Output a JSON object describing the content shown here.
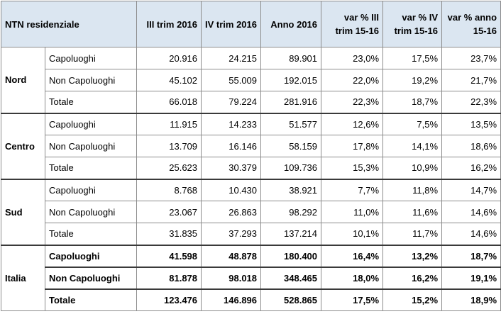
{
  "table": {
    "headers": {
      "title": "NTN residenziale",
      "c1": "III trim 2016",
      "c2": "IV trim 2016",
      "c3": "Anno 2016",
      "c4": "var % III trim 15-16",
      "c5": "var % IV trim 15-16",
      "c6": "var % anno 15-16"
    },
    "groups": [
      {
        "name": "Nord",
        "rows": [
          {
            "label": "Capoluoghi",
            "v": [
              "20.916",
              "24.215",
              "89.901",
              "23,0%",
              "17,5%",
              "23,7%"
            ]
          },
          {
            "label": "Non Capoluoghi",
            "v": [
              "45.102",
              "55.009",
              "192.015",
              "22,0%",
              "19,2%",
              "21,7%"
            ]
          },
          {
            "label": "Totale",
            "v": [
              "66.018",
              "79.224",
              "281.916",
              "22,3%",
              "18,7%",
              "22,3%"
            ]
          }
        ]
      },
      {
        "name": "Centro",
        "rows": [
          {
            "label": "Capoluoghi",
            "v": [
              "11.915",
              "14.233",
              "51.577",
              "12,6%",
              "7,5%",
              "13,5%"
            ]
          },
          {
            "label": "Non Capoluoghi",
            "v": [
              "13.709",
              "16.146",
              "58.159",
              "17,8%",
              "14,1%",
              "18,6%"
            ]
          },
          {
            "label": "Totale",
            "v": [
              "25.623",
              "30.379",
              "109.736",
              "15,3%",
              "10,9%",
              "16,2%"
            ]
          }
        ]
      },
      {
        "name": "Sud",
        "rows": [
          {
            "label": "Capoluoghi",
            "v": [
              "8.768",
              "10.430",
              "38.921",
              "7,7%",
              "11,8%",
              "14,7%"
            ]
          },
          {
            "label": "Non Capoluoghi",
            "v": [
              "23.067",
              "26.863",
              "98.292",
              "11,0%",
              "11,6%",
              "14,6%"
            ]
          },
          {
            "label": "Totale",
            "v": [
              "31.835",
              "37.293",
              "137.214",
              "10,1%",
              "11,7%",
              "14,6%"
            ]
          }
        ]
      },
      {
        "name": "Italia",
        "rows": [
          {
            "label": "Capoluoghi",
            "v": [
              "41.598",
              "48.878",
              "180.400",
              "16,4%",
              "13,2%",
              "18,7%"
            ]
          },
          {
            "label": "Non Capoluoghi",
            "v": [
              "81.878",
              "98.018",
              "348.465",
              "18,0%",
              "16,2%",
              "19,1%"
            ]
          },
          {
            "label": "Totale",
            "v": [
              "123.476",
              "146.896",
              "528.865",
              "17,5%",
              "15,2%",
              "18,9%"
            ]
          }
        ]
      }
    ]
  }
}
